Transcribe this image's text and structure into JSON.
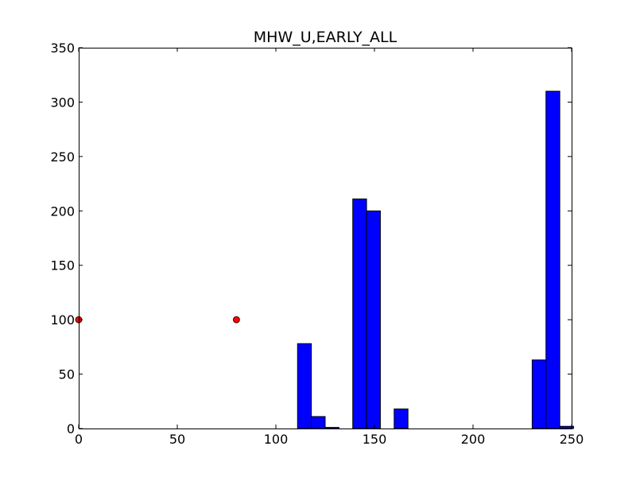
{
  "chart_data": {
    "type": "bar",
    "title": "MHW_U,EARLY_ALL",
    "xlabel": "",
    "ylabel": "",
    "xlim": [
      0,
      250
    ],
    "ylim": [
      0,
      350
    ],
    "x_ticks": [
      0,
      50,
      100,
      150,
      200,
      250
    ],
    "y_ticks": [
      0,
      50,
      100,
      150,
      200,
      250,
      300,
      350
    ],
    "grid": false,
    "bar_width": 7,
    "bar_color": "#0000ff",
    "bars": [
      {
        "x": 111,
        "value": 78
      },
      {
        "x": 118,
        "value": 11
      },
      {
        "x": 125,
        "value": 1
      },
      {
        "x": 132,
        "value": 0
      },
      {
        "x": 139,
        "value": 211
      },
      {
        "x": 146,
        "value": 200
      },
      {
        "x": 153,
        "value": 0
      },
      {
        "x": 160,
        "value": 18
      },
      {
        "x": 167,
        "value": 0
      },
      {
        "x": 174,
        "value": 0
      },
      {
        "x": 181,
        "value": 0
      },
      {
        "x": 188,
        "value": 0
      },
      {
        "x": 195,
        "value": 0
      },
      {
        "x": 202,
        "value": 0
      },
      {
        "x": 209,
        "value": 0
      },
      {
        "x": 216,
        "value": 0
      },
      {
        "x": 223,
        "value": 0
      },
      {
        "x": 230,
        "value": 63
      },
      {
        "x": 237,
        "value": 310
      },
      {
        "x": 244,
        "value": 2
      }
    ],
    "points_color": "#ff0000",
    "points": [
      {
        "x": 0,
        "y": 100
      },
      {
        "x": 80,
        "y": 100
      }
    ]
  }
}
